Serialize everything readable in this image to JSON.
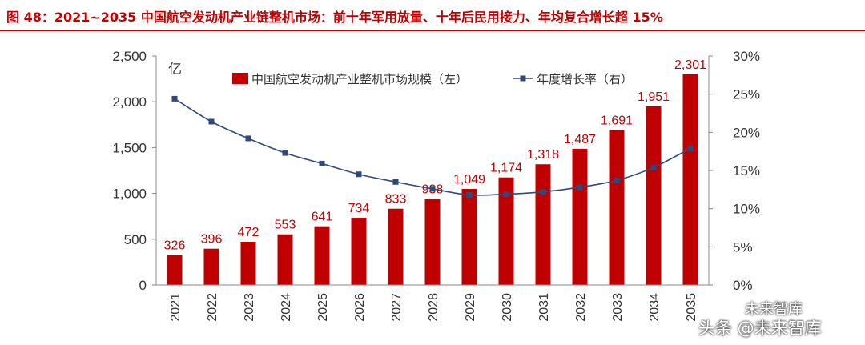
{
  "figure": {
    "title": "图 48：2021~2035 中国航空发动机产业链整机市场：前十年军用放量、十年后民用接力、年均复合增长超 15%",
    "accent_color": "#c00000",
    "line_color": "#2f4a7a",
    "watermark_top": "未来智库",
    "watermark_bottom": "头条 @未来智库"
  },
  "chart_data": {
    "type": "bar",
    "categories": [
      "2021",
      "2022",
      "2023",
      "2024",
      "2025",
      "2026",
      "2027",
      "2028",
      "2029",
      "2030",
      "2031",
      "2032",
      "2033",
      "2034",
      "2035"
    ],
    "series": [
      {
        "name": "中国航空发动机产业整机市场规模（左）",
        "type": "bar",
        "axis": "left",
        "color": "#c00000",
        "values": [
          326,
          396,
          472,
          553,
          641,
          734,
          833,
          938,
          1049,
          1174,
          1318,
          1487,
          1691,
          1951,
          2301
        ],
        "labels": [
          "326",
          "396",
          "472",
          "553",
          "641",
          "734",
          "833",
          "938",
          "1,049",
          "1,174",
          "1,318",
          "1,487",
          "1,691",
          "1,951",
          "2,301"
        ]
      },
      {
        "name": "年度增长率（右）",
        "type": "line",
        "axis": "right",
        "color": "#2f4a7a",
        "values": [
          24.4,
          21.4,
          19.2,
          17.3,
          15.9,
          14.5,
          13.5,
          12.6,
          11.8,
          11.9,
          12.2,
          12.8,
          13.7,
          15.4,
          17.9
        ]
      }
    ],
    "left_axis": {
      "unit": "亿",
      "ylim": [
        0,
        2500
      ],
      "ticks": [
        "0",
        "500",
        "1,000",
        "1,500",
        "2,000",
        "2,500"
      ]
    },
    "right_axis": {
      "ylim": [
        0,
        30
      ],
      "ticks": [
        "0%",
        "5%",
        "10%",
        "15%",
        "20%",
        "25%",
        "30%"
      ]
    },
    "grid": false,
    "legend_position": "top"
  }
}
